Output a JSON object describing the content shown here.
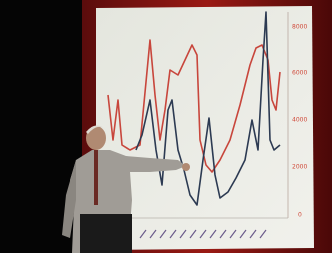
{
  "screen": {
    "axis_labels": [
      "8000",
      "6000",
      "4000",
      "2000",
      "0"
    ]
  }
}
